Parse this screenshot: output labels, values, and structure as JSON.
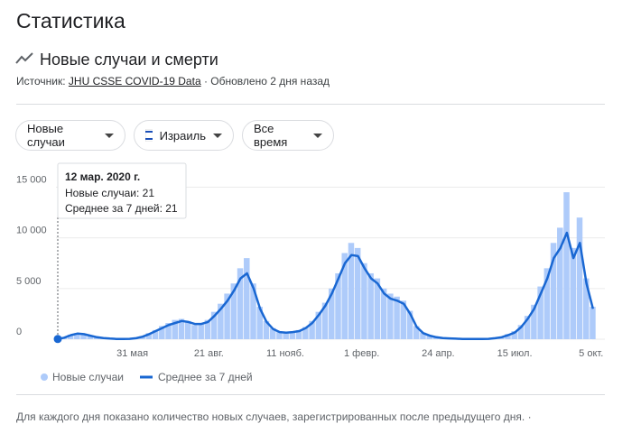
{
  "header": {
    "title": "Статистика",
    "section": "Новые случаи и смерти",
    "source_label": "Источник:",
    "source_link": "JHU CSSE COVID-19 Data",
    "updated": "· Обновлено 2 дня назад"
  },
  "filters": [
    "Новые случаи",
    "Израиль",
    "Все время"
  ],
  "tooltip": {
    "date": "12 мар. 2020 г.",
    "line1": "Новые случаи: 21",
    "line2": "Среднее за 7 дней: 21"
  },
  "footer": "Для каждого дня показано количество новых случаев, зарегистрированных после предыдущего дня. ·",
  "chart_data": {
    "type": "bar",
    "x": [
      0,
      7,
      14,
      21,
      28,
      35,
      42,
      49,
      56,
      63,
      70,
      77,
      84,
      91,
      98,
      105,
      112,
      119,
      126,
      133,
      140,
      147,
      154,
      161,
      168,
      175,
      182,
      189,
      196,
      203,
      210,
      217,
      224,
      231,
      238,
      245,
      252,
      259,
      266,
      273,
      280,
      287,
      294,
      301,
      308,
      315,
      322,
      329,
      336,
      343,
      350,
      357,
      364,
      371,
      378,
      385,
      392,
      399,
      406,
      413,
      420,
      427,
      434,
      441,
      448,
      455,
      462,
      469,
      476,
      483,
      490,
      497,
      504,
      511,
      518,
      525,
      532,
      539,
      546,
      553,
      560,
      567,
      574
    ],
    "series": [
      {
        "name": "Новые случаи",
        "type": "bar",
        "color": "#aecbfa",
        "values": [
          21,
          200,
          450,
          600,
          450,
          300,
          180,
          100,
          50,
          25,
          30,
          60,
          150,
          300,
          600,
          900,
          1300,
          1600,
          1900,
          2000,
          1800,
          1400,
          1600,
          1900,
          2700,
          3500,
          4500,
          5500,
          7000,
          8000,
          5500,
          3200,
          1800,
          1100,
          700,
          600,
          750,
          900,
          1200,
          1800,
          2700,
          3600,
          5000,
          6500,
          8500,
          9500,
          9000,
          7500,
          6500,
          6000,
          5000,
          4500,
          4200,
          3800,
          2800,
          1300,
          650,
          400,
          220,
          130,
          90,
          55,
          35,
          25,
          20,
          25,
          50,
          120,
          250,
          500,
          800,
          1400,
          2300,
          3400,
          5200,
          7000,
          9500,
          11000,
          14500,
          9000,
          12000,
          6000,
          3200
        ]
      },
      {
        "name": "Среднее за 7 дней",
        "type": "line",
        "color": "#1967d2",
        "values": [
          21,
          150,
          400,
          550,
          500,
          350,
          200,
          120,
          60,
          30,
          20,
          40,
          100,
          250,
          500,
          800,
          1100,
          1400,
          1600,
          1800,
          1700,
          1500,
          1500,
          1700,
          2300,
          3000,
          3800,
          4800,
          6000,
          6500,
          5000,
          3000,
          1700,
          1000,
          700,
          650,
          700,
          800,
          1100,
          1600,
          2400,
          3300,
          4500,
          6000,
          7500,
          8300,
          8200,
          7000,
          6000,
          5500,
          4500,
          4000,
          3800,
          3500,
          2500,
          1200,
          600,
          350,
          200,
          120,
          80,
          50,
          30,
          20,
          20,
          20,
          40,
          100,
          200,
          400,
          650,
          1200,
          2000,
          3000,
          4500,
          6000,
          8000,
          9000,
          10500,
          8000,
          9500,
          5500,
          3000
        ]
      }
    ],
    "xlim": [
      0,
      580
    ],
    "xticks": [
      {
        "value": 80,
        "label": "31 мая"
      },
      {
        "value": 162,
        "label": "21 авг."
      },
      {
        "value": 244,
        "label": "11 нояб."
      },
      {
        "value": 326,
        "label": "1 февр."
      },
      {
        "value": 408,
        "label": "24 апр."
      },
      {
        "value": 490,
        "label": "15 июл."
      },
      {
        "value": 572,
        "label": "5 окт."
      }
    ],
    "ylim": [
      0,
      17000
    ],
    "yticks": [
      0,
      {
        "value": 5000,
        "label": "5 000"
      },
      {
        "value": 10000,
        "label": "10 000"
      },
      {
        "value": 15000,
        "label": "15 000"
      }
    ],
    "grid": true
  }
}
